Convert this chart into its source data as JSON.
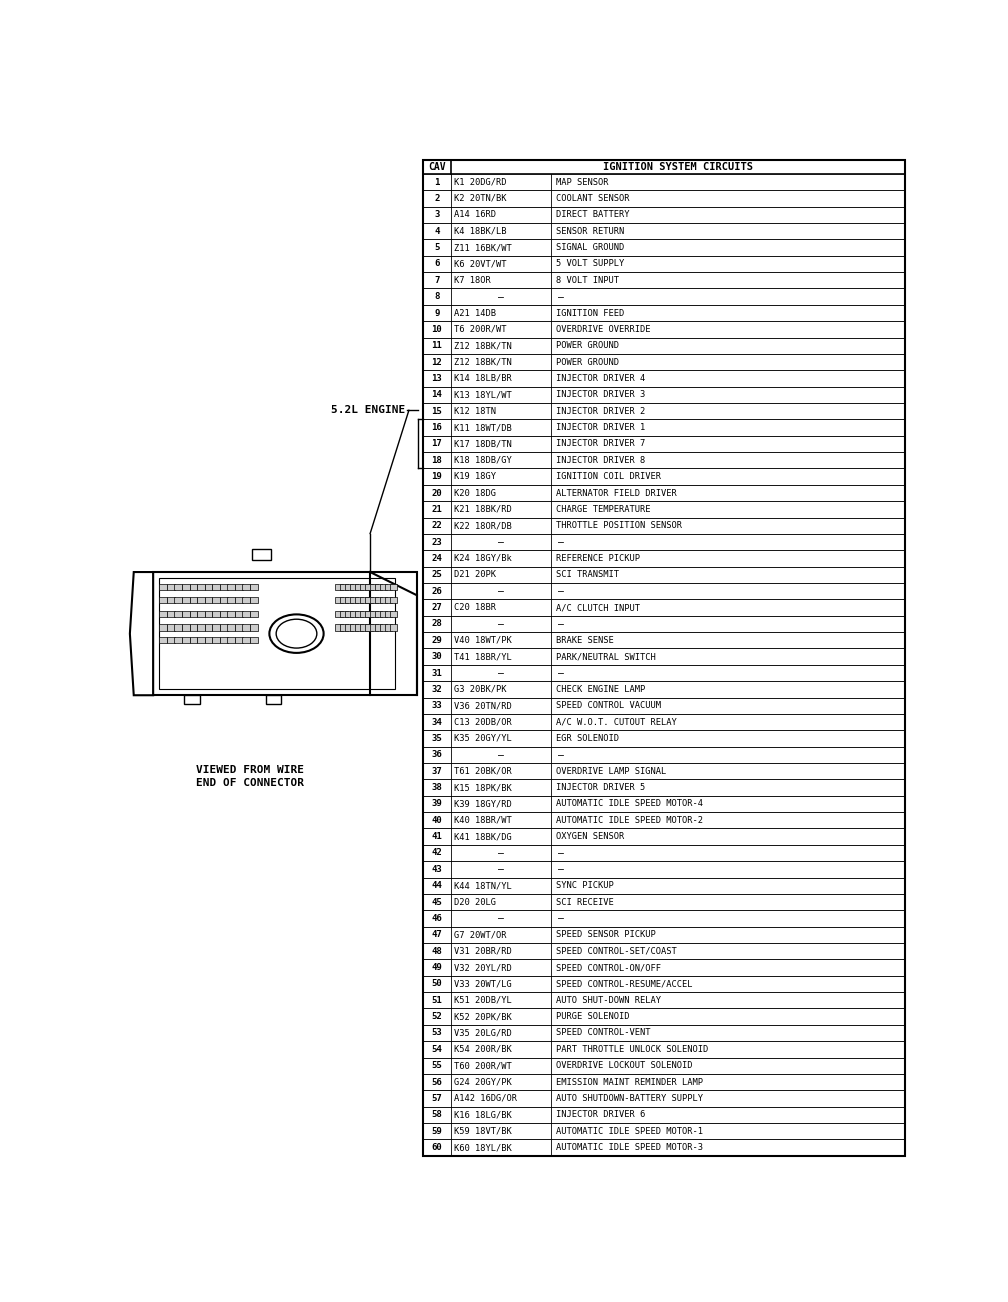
{
  "title": "IGNITION SYSTEM CIRCUITS",
  "rows": [
    [
      "1",
      "K1 20DG/RD",
      "MAP SENSOR"
    ],
    [
      "2",
      "K2 20TN/BK",
      "COOLANT SENSOR"
    ],
    [
      "3",
      "A14 16RD",
      "DIRECT BATTERY"
    ],
    [
      "4",
      "K4 18BK/LB",
      "SENSOR RETURN"
    ],
    [
      "5",
      "Z11 16BK/WT",
      "SIGNAL GROUND"
    ],
    [
      "6",
      "K6 20VT/WT",
      "5 VOLT SUPPLY"
    ],
    [
      "7",
      "K7 18OR",
      "8 VOLT INPUT"
    ],
    [
      "8",
      "—",
      "—"
    ],
    [
      "9",
      "A21 14DB",
      "IGNITION FEED"
    ],
    [
      "10",
      "T6 200R/WT",
      "OVERDRIVE OVERRIDE"
    ],
    [
      "11",
      "Z12 18BK/TN",
      "POWER GROUND"
    ],
    [
      "12",
      "Z12 18BK/TN",
      "POWER GROUND"
    ],
    [
      "13",
      "K14 18LB/BR",
      "INJECTOR DRIVER 4"
    ],
    [
      "14",
      "K13 18YL/WT",
      "INJECTOR DRIVER 3"
    ],
    [
      "15",
      "K12 18TN",
      "INJECTOR DRIVER 2"
    ],
    [
      "16",
      "K11 18WT/DB",
      "INJECTOR DRIVER 1"
    ],
    [
      "17",
      "K17 18DB/TN",
      "INJECTOR DRIVER 7"
    ],
    [
      "18",
      "K18 18DB/GY",
      "INJECTOR DRIVER 8"
    ],
    [
      "19",
      "K19 18GY",
      "IGNITION COIL DRIVER"
    ],
    [
      "20",
      "K20 18DG",
      "ALTERNATOR FIELD DRIVER"
    ],
    [
      "21",
      "K21 18BK/RD",
      "CHARGE TEMPERATURE"
    ],
    [
      "22",
      "K22 18OR/DB",
      "THROTTLE POSITION SENSOR"
    ],
    [
      "23",
      "—",
      "—"
    ],
    [
      "24",
      "K24 18GY/Bk",
      "REFERENCE PICKUP"
    ],
    [
      "25",
      "D21 20PK",
      "SCI TRANSMIT"
    ],
    [
      "26",
      "—",
      "—"
    ],
    [
      "27",
      "C20 18BR",
      "A/C CLUTCH INPUT"
    ],
    [
      "28",
      "—",
      "—"
    ],
    [
      "29",
      "V40 18WT/PK",
      "BRAKE SENSE"
    ],
    [
      "30",
      "T41 18BR/YL",
      "PARK/NEUTRAL SWITCH"
    ],
    [
      "31",
      "—",
      "—"
    ],
    [
      "32",
      "G3 20BK/PK",
      "CHECK ENGINE LAMP"
    ],
    [
      "33",
      "V36 20TN/RD",
      "SPEED CONTROL VACUUM"
    ],
    [
      "34",
      "C13 20DB/OR",
      "A/C W.O.T. CUTOUT RELAY"
    ],
    [
      "35",
      "K35 20GY/YL",
      "EGR SOLENOID"
    ],
    [
      "36",
      "—",
      "—"
    ],
    [
      "37",
      "T61 20BK/OR",
      "OVERDRIVE LAMP SIGNAL"
    ],
    [
      "38",
      "K15 18PK/BK",
      "INJECTOR DRIVER 5"
    ],
    [
      "39",
      "K39 18GY/RD",
      "AUTOMATIC IDLE SPEED MOTOR-4"
    ],
    [
      "40",
      "K40 18BR/WT",
      "AUTOMATIC IDLE SPEED MOTOR-2"
    ],
    [
      "41",
      "K41 18BK/DG",
      "OXYGEN SENSOR"
    ],
    [
      "42",
      "—",
      "—"
    ],
    [
      "43",
      "—",
      "—"
    ],
    [
      "44",
      "K44 18TN/YL",
      "SYNC PICKUP"
    ],
    [
      "45",
      "D20 20LG",
      "SCI RECEIVE"
    ],
    [
      "46",
      "—",
      "—"
    ],
    [
      "47",
      "G7 20WT/OR",
      "SPEED SENSOR PICKUP"
    ],
    [
      "48",
      "V31 20BR/RD",
      "SPEED CONTROL-SET/COAST"
    ],
    [
      "49",
      "V32 20YL/RD",
      "SPEED CONTROL-ON/OFF"
    ],
    [
      "50",
      "V33 20WT/LG",
      "SPEED CONTROL-RESUME/ACCEL"
    ],
    [
      "51",
      "K51 20DB/YL",
      "AUTO SHUT-DOWN RELAY"
    ],
    [
      "52",
      "K52 20PK/BK",
      "PURGE SOLENOID"
    ],
    [
      "53",
      "V35 20LG/RD",
      "SPEED CONTROL-VENT"
    ],
    [
      "54",
      "K54 200R/BK",
      "PART THROTTLE UNLOCK SOLENOID"
    ],
    [
      "55",
      "T60 200R/WT",
      "OVERDRIVE LOCKOUT SOLENOID"
    ],
    [
      "56",
      "G24 20GY/PK",
      "EMISSION MAINT REMINDER LAMP"
    ],
    [
      "57",
      "A142 16DG/OR",
      "AUTO SHUTDOWN-BATTERY SUPPLY"
    ],
    [
      "58",
      "K16 18LG/BK",
      "INJECTOR DRIVER 6"
    ],
    [
      "59",
      "K59 18VT/BK",
      "AUTOMATIC IDLE SPEED MOTOR-1"
    ],
    [
      "60",
      "K60 18YL/BK",
      "AUTOMATIC IDLE SPEED MOTOR-3"
    ]
  ],
  "connector_label": "5.2L ENGINE",
  "viewed_label1": "VIEWED FROM WIRE",
  "viewed_label2": "END OF CONNECTOR",
  "bg_color": "#ffffff",
  "lc": "#000000",
  "tc": "#000000"
}
